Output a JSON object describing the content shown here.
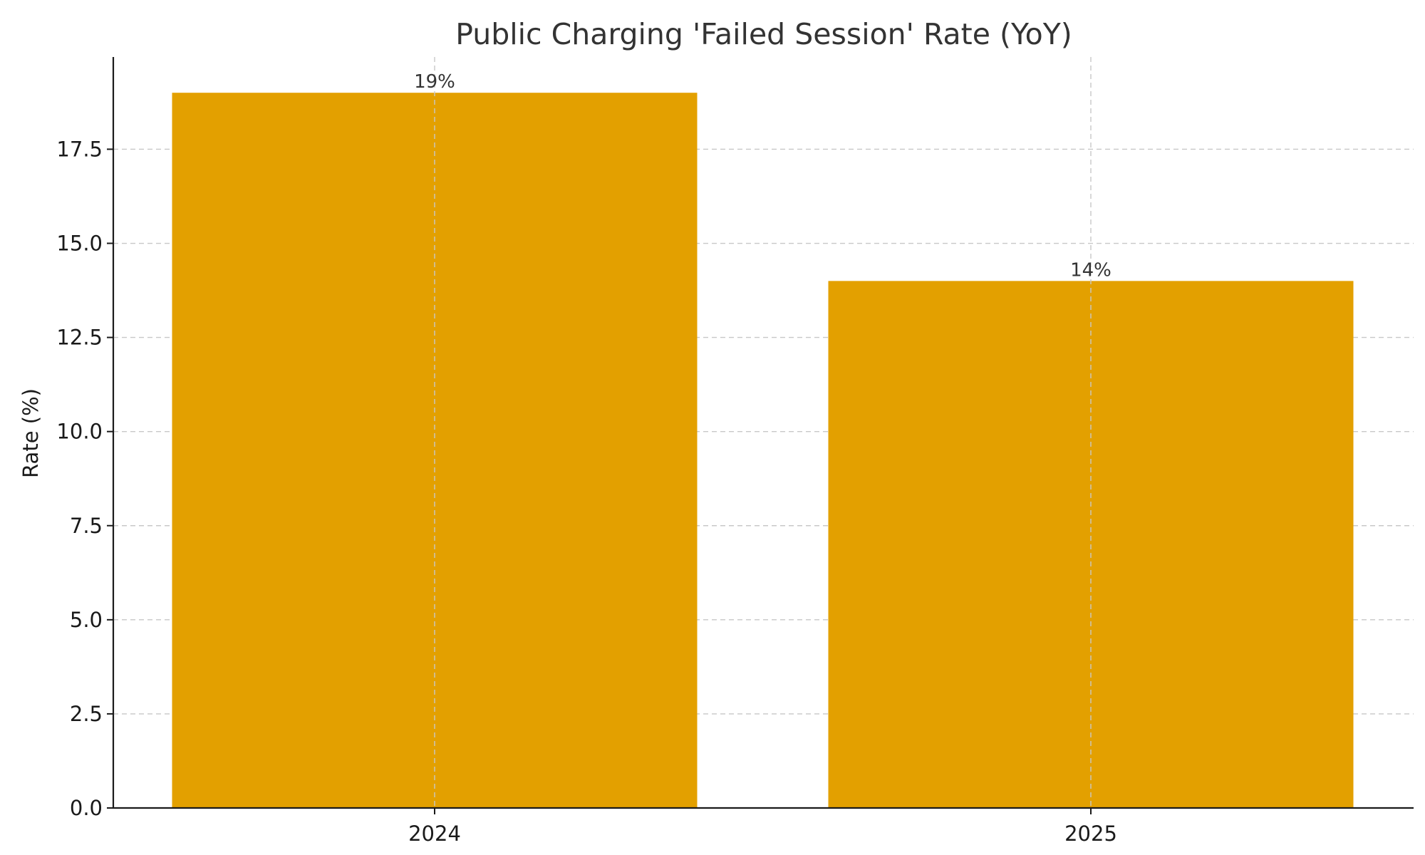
{
  "chart_data": {
    "type": "bar",
    "title": "Public Charging 'Failed Session' Rate (YoY)",
    "xlabel": "",
    "ylabel": "Rate (%)",
    "categories": [
      "2024",
      "2025"
    ],
    "values": [
      19,
      14
    ],
    "data_labels": [
      "19%",
      "14%"
    ],
    "ylim": [
      0,
      19.95
    ],
    "yticks": [
      0,
      2.5,
      5,
      7.5,
      10,
      12.5,
      15,
      17.5
    ],
    "ytick_labels": [
      "0.0",
      "2.5",
      "5.0",
      "7.5",
      "10.0",
      "12.5",
      "15.0",
      "17.5"
    ],
    "grid": true,
    "bar_color": "#E3A000",
    "legend": "none"
  }
}
